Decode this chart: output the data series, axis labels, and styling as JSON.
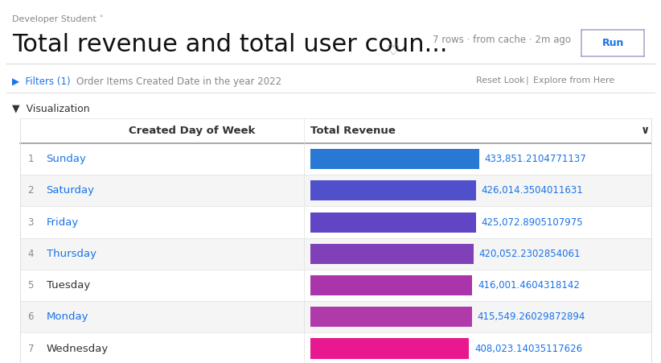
{
  "title": "Total revenue and total user coun...",
  "subtitle": "7 rows · from cache · 2m ago",
  "header_label": "Developer Student ˅",
  "filter_text": "Order Items Created Date in the year 2022",
  "filters_label": "Filters (1)",
  "section_label": "Visualization",
  "col1_header": "Created Day of Week",
  "col2_header": "Total Revenue",
  "run_button": "Run",
  "days": [
    "Sunday",
    "Saturday",
    "Friday",
    "Thursday",
    "Tuesday",
    "Monday",
    "Wednesday"
  ],
  "values": [
    433851.2104771137,
    426014.3504011631,
    425072.8905107975,
    420052.2302854061,
    416001.4604318142,
    415549.26029872894,
    408023.14035117626
  ],
  "value_labels": [
    "433,851.2104771137",
    "426,014.3504011631",
    "425,072.8905107975",
    "420,052.2302854061",
    "416,001.4604318142",
    "415,549.26029872894",
    "408,023.14035117626"
  ],
  "bar_colors": [
    "#2979d4",
    "#5050cc",
    "#6045c4",
    "#8040b8",
    "#aa35aa",
    "#b03aaa",
    "#e81890"
  ],
  "row_numbers": [
    "1",
    "2",
    "3",
    "4",
    "5",
    "6",
    "7"
  ],
  "background_color": "#ffffff",
  "alt_row_color": "#f5f5f5",
  "header_row_color": "#ffffff",
  "border_color": "#e0e0e0",
  "text_color": "#333333",
  "blue_text_color": "#1a73e8",
  "gray_text_color": "#888888",
  "title_fontsize": 22,
  "header_fontsize": 9,
  "row_fontsize": 10,
  "bar_max_value": 433851.2104771137,
  "bar_min_value": 400000
}
